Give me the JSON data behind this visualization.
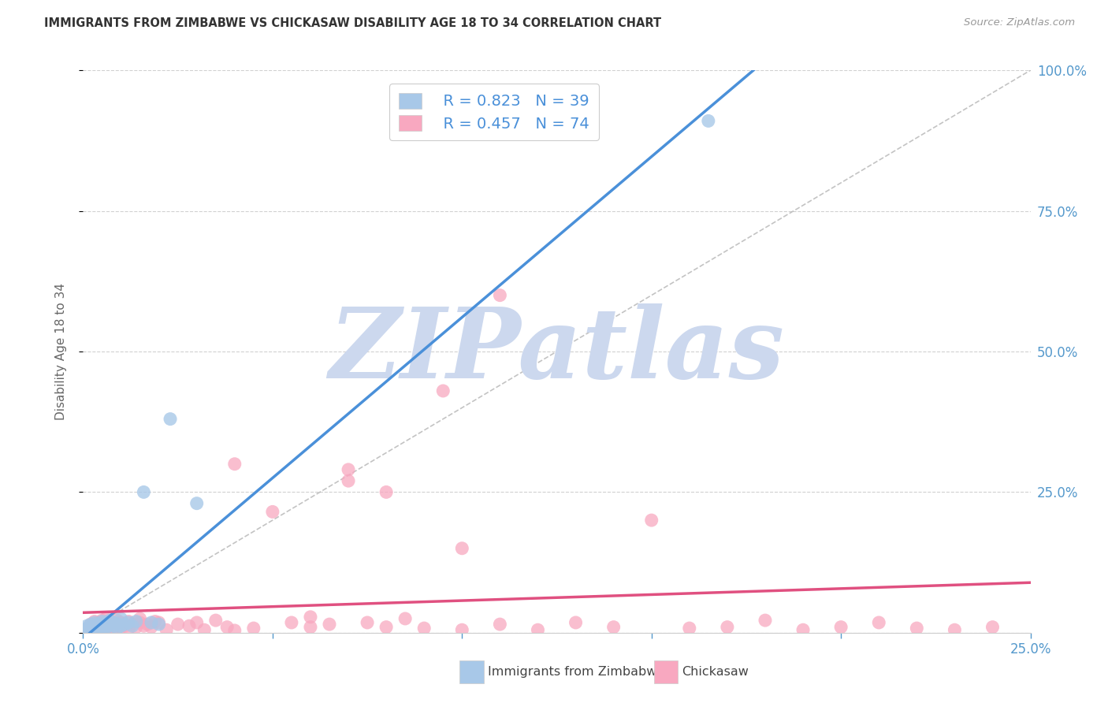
{
  "title": "IMMIGRANTS FROM ZIMBABWE VS CHICKASAW DISABILITY AGE 18 TO 34 CORRELATION CHART",
  "source": "Source: ZipAtlas.com",
  "ylabel": "Disability Age 18 to 34",
  "xlim": [
    0,
    0.25
  ],
  "ylim": [
    0,
    1.0
  ],
  "xticks": [
    0.0,
    0.05,
    0.1,
    0.15,
    0.2,
    0.25
  ],
  "yticks": [
    0.0,
    0.25,
    0.5,
    0.75,
    1.0
  ],
  "xticklabels": [
    "0.0%",
    "",
    "",
    "",
    "",
    "25.0%"
  ],
  "yticklabels": [
    "",
    "25.0%",
    "50.0%",
    "75.0%",
    "100.0%"
  ],
  "legend_r1": "R = 0.823",
  "legend_n1": "N = 39",
  "legend_r2": "R = 0.457",
  "legend_n2": "N = 74",
  "legend_label1": "Immigrants from Zimbabwe",
  "legend_label2": "Chickasaw",
  "color_blue": "#a8c8e8",
  "color_pink": "#f8a8c0",
  "color_blue_line": "#4a90d9",
  "color_pink_line": "#e05080",
  "color_legend_text": "#4a90d9",
  "color_n_text": "#333333",
  "watermark": "ZIPatlas",
  "watermark_color": "#ccd8ee",
  "background_color": "#ffffff",
  "grid_color": "#cccccc",
  "title_color": "#333333",
  "axis_color": "#5599cc",
  "blue_x": [
    0.0005,
    0.001,
    0.001,
    0.001,
    0.002,
    0.002,
    0.002,
    0.002,
    0.003,
    0.003,
    0.003,
    0.003,
    0.004,
    0.004,
    0.004,
    0.005,
    0.005,
    0.005,
    0.006,
    0.006,
    0.006,
    0.007,
    0.007,
    0.008,
    0.008,
    0.009,
    0.009,
    0.01,
    0.01,
    0.011,
    0.012,
    0.013,
    0.014,
    0.016,
    0.018,
    0.02,
    0.023,
    0.03,
    0.165
  ],
  "blue_y": [
    0.005,
    0.003,
    0.008,
    0.012,
    0.006,
    0.01,
    0.015,
    0.005,
    0.008,
    0.012,
    0.018,
    0.005,
    0.01,
    0.015,
    0.008,
    0.012,
    0.02,
    0.006,
    0.01,
    0.018,
    0.008,
    0.014,
    0.022,
    0.012,
    0.018,
    0.008,
    0.016,
    0.012,
    0.025,
    0.015,
    0.018,
    0.012,
    0.02,
    0.25,
    0.018,
    0.015,
    0.38,
    0.23,
    0.91
  ],
  "pink_x": [
    0.001,
    0.002,
    0.002,
    0.003,
    0.003,
    0.004,
    0.004,
    0.004,
    0.005,
    0.005,
    0.005,
    0.006,
    0.006,
    0.006,
    0.007,
    0.007,
    0.008,
    0.008,
    0.009,
    0.009,
    0.01,
    0.01,
    0.011,
    0.012,
    0.012,
    0.013,
    0.014,
    0.015,
    0.015,
    0.016,
    0.017,
    0.018,
    0.019,
    0.02,
    0.022,
    0.025,
    0.028,
    0.03,
    0.032,
    0.035,
    0.038,
    0.04,
    0.045,
    0.05,
    0.055,
    0.06,
    0.065,
    0.07,
    0.075,
    0.08,
    0.085,
    0.09,
    0.095,
    0.1,
    0.11,
    0.12,
    0.13,
    0.14,
    0.15,
    0.16,
    0.17,
    0.18,
    0.19,
    0.2,
    0.21,
    0.22,
    0.23,
    0.24,
    0.1,
    0.08,
    0.11,
    0.06,
    0.07,
    0.04
  ],
  "pink_y": [
    0.005,
    0.008,
    0.015,
    0.01,
    0.02,
    0.005,
    0.012,
    0.018,
    0.008,
    0.015,
    0.022,
    0.005,
    0.018,
    0.025,
    0.01,
    0.02,
    0.012,
    0.008,
    0.015,
    0.022,
    0.01,
    0.018,
    0.012,
    0.02,
    0.008,
    0.015,
    0.01,
    0.018,
    0.025,
    0.012,
    0.015,
    0.01,
    0.02,
    0.018,
    0.005,
    0.015,
    0.012,
    0.018,
    0.005,
    0.022,
    0.01,
    0.3,
    0.008,
    0.215,
    0.018,
    0.01,
    0.015,
    0.29,
    0.018,
    0.01,
    0.025,
    0.008,
    0.43,
    0.005,
    0.015,
    0.005,
    0.018,
    0.01,
    0.2,
    0.008,
    0.01,
    0.022,
    0.005,
    0.01,
    0.018,
    0.008,
    0.005,
    0.01,
    0.15,
    0.25,
    0.6,
    0.028,
    0.27,
    0.004
  ]
}
